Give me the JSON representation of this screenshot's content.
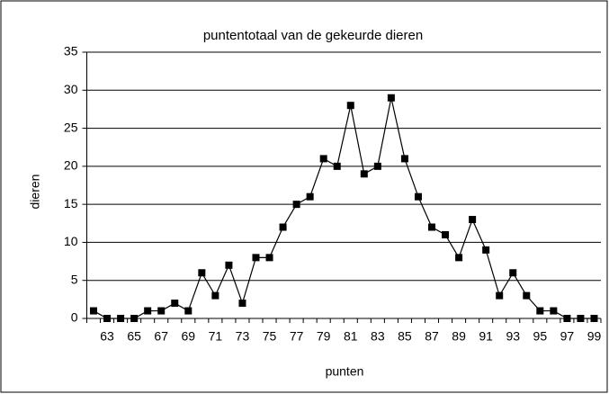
{
  "chart_data": {
    "type": "line",
    "title": "puntentotaal van de gekeurde dieren",
    "x_label": "punten",
    "y_label": "dieren",
    "categories": [
      null,
      "63",
      null,
      "65",
      null,
      "67",
      null,
      "69",
      null,
      "71",
      null,
      "73",
      null,
      "75",
      null,
      "77",
      null,
      "79",
      null,
      "81",
      null,
      "83",
      null,
      "85",
      null,
      "87",
      null,
      "89",
      null,
      "91",
      null,
      "93",
      null,
      "95",
      null,
      "97",
      null,
      "99"
    ],
    "series": [
      {
        "name": "dieren",
        "color": "#000000",
        "values": [
          1,
          0,
          0,
          0,
          1,
          1,
          2,
          1,
          6,
          3,
          7,
          2,
          8,
          8,
          12,
          15,
          16,
          21,
          20,
          28,
          19,
          20,
          29,
          21,
          16,
          12,
          11,
          8,
          13,
          9,
          3,
          6,
          3,
          1,
          1,
          0,
          0,
          0
        ]
      }
    ],
    "ylim": [
      0,
      35
    ],
    "yticks": [
      0,
      5,
      10,
      15,
      20,
      25,
      30,
      35
    ],
    "grid": true,
    "legend": false
  }
}
